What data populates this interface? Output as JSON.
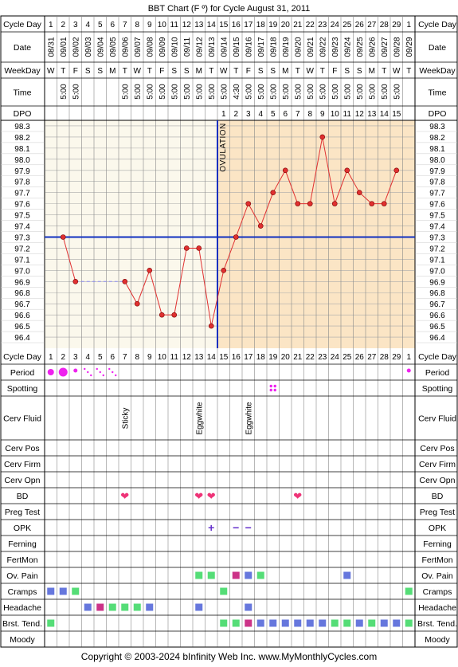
{
  "title": "BBT Chart (F º) for Cycle August 31, 2011",
  "row_labels": {
    "cycle_day": "Cycle Day",
    "date": "Date",
    "weekday": "WeekDay",
    "time": "Time",
    "dpo": "DPO",
    "period": "Period",
    "spotting": "Spotting",
    "cerv_fluid": "Cerv Fluid",
    "cerv_pos": "Cerv Pos",
    "cerv_firm": "Cerv Firm",
    "cerv_opn": "Cerv Opn",
    "bd": "BD",
    "preg_test": "Preg Test",
    "opk": "OPK",
    "ferning": "Ferning",
    "fertmon": "FertMon",
    "ov_pain": "Ov. Pain",
    "cramps": "Cramps",
    "headache": "Headache",
    "brst_tend": "Brst. Tend.",
    "moody": "Moody"
  },
  "ovulation_label": "OVULATION",
  "footer": "Copyright © 2003-2024 bInfinity Web Inc.     www.MyMonthlyCycles.com",
  "colors": {
    "line": "#e03030",
    "point": "#e03030",
    "coverline": "#1030c0",
    "ovulation_line": "#1030c0",
    "pre_bg": "#fbf8ec",
    "post_bg": "#fbe5c5",
    "period": "#ee22ee",
    "heart": "#ee3377",
    "green": "#55dd77",
    "blue": "#6677dd",
    "magenta": "#cc3388"
  },
  "chart_data": {
    "type": "line",
    "cycle_days": [
      "1",
      "2",
      "3",
      "4",
      "5",
      "6",
      "7",
      "8",
      "9",
      "10",
      "11",
      "12",
      "13",
      "14",
      "15",
      "16",
      "17",
      "18",
      "19",
      "20",
      "21",
      "22",
      "23",
      "24",
      "25",
      "26",
      "27",
      "28",
      "29",
      "1"
    ],
    "dates": [
      "08/31",
      "09/01",
      "09/02",
      "09/03",
      "09/04",
      "09/05",
      "09/06",
      "09/07",
      "09/08",
      "09/09",
      "09/10",
      "09/11",
      "09/12",
      "09/13",
      "09/14",
      "09/15",
      "09/16",
      "09/17",
      "09/18",
      "09/19",
      "09/20",
      "09/21",
      "09/22",
      "09/23",
      "09/24",
      "09/25",
      "09/26",
      "09/27",
      "09/28",
      "09/29"
    ],
    "weekdays": [
      "W",
      "T",
      "F",
      "S",
      "S",
      "M",
      "T",
      "W",
      "T",
      "F",
      "S",
      "S",
      "M",
      "T",
      "W",
      "T",
      "F",
      "S",
      "S",
      "M",
      "T",
      "W",
      "T",
      "F",
      "S",
      "S",
      "M",
      "T",
      "W",
      "T"
    ],
    "times": [
      "",
      "5:00",
      "5:00",
      "",
      "",
      "",
      "5:00",
      "5:00",
      "5:00",
      "5:00",
      "5:00",
      "5:00",
      "5:00",
      "5:00",
      "5:00",
      "4:30",
      "5:00",
      "5:00",
      "5:00",
      "5:00",
      "5:00",
      "5:00",
      "5:00",
      "5:00",
      "5:00",
      "5:00",
      "5:00",
      "5:00",
      "5:00",
      ""
    ],
    "dpo": [
      "",
      "",
      "",
      "",
      "",
      "",
      "",
      "",
      "",
      "",
      "",
      "",
      "",
      "",
      "1",
      "2",
      "3",
      "4",
      "5",
      "6",
      "7",
      "8",
      "9",
      "10",
      "11",
      "12",
      "13",
      "14",
      "15",
      ""
    ],
    "temperatures": [
      null,
      97.3,
      96.9,
      null,
      null,
      null,
      96.9,
      96.7,
      97.0,
      96.6,
      96.6,
      97.2,
      97.2,
      96.5,
      97.0,
      97.3,
      97.6,
      97.4,
      97.7,
      97.9,
      97.6,
      97.6,
      98.2,
      97.6,
      97.9,
      97.7,
      97.6,
      97.6,
      97.9,
      null
    ],
    "y_ticks": [
      "98.3",
      "98.2",
      "98.1",
      "98.0",
      "97.9",
      "97.8",
      "97.7",
      "97.6",
      "97.5",
      "97.4",
      "97.3",
      "97.2",
      "97.1",
      "97.0",
      "96.9",
      "96.8",
      "96.7",
      "96.6",
      "96.5",
      "96.4"
    ],
    "ylim": [
      96.4,
      98.3
    ],
    "coverline": 97.3,
    "ovulation_day_index": 13,
    "interpolated_segment": [
      2,
      6
    ],
    "period": [
      "big",
      "big",
      "small",
      "dots",
      "dots",
      "dots",
      "",
      "",
      "",
      "",
      "",
      "",
      "",
      "",
      "",
      "",
      "",
      "",
      "",
      "",
      "",
      "",
      "",
      "",
      "",
      "",
      "",
      "",
      "",
      "small"
    ],
    "spotting": [
      18
    ],
    "cerv_fluid": {
      "6": "Sticky",
      "12": "Eggwhite",
      "16": "Eggwhite"
    },
    "bd": [
      6,
      12,
      13,
      20
    ],
    "opk": {
      "13": "+",
      "15": "−",
      "16": "−"
    },
    "ov_pain": {
      "12": "green",
      "13": "green",
      "15": "magenta",
      "16": "blue",
      "17": "green",
      "24": "blue"
    },
    "cramps": {
      "0": "blue",
      "1": "blue",
      "2": "green",
      "14": "green",
      "29": "green"
    },
    "headache": {
      "3": "blue",
      "4": "magenta",
      "5": "green",
      "6": "green",
      "7": "green",
      "8": "blue",
      "12": "blue",
      "16": "blue"
    },
    "brst_tend": {
      "0": "green",
      "14": "green",
      "15": "green",
      "16": "magenta",
      "17": "blue",
      "18": "blue",
      "19": "blue",
      "20": "blue",
      "21": "blue",
      "22": "blue",
      "23": "green",
      "24": "green",
      "25": "blue",
      "26": "green",
      "27": "blue",
      "28": "blue",
      "29": "green"
    }
  }
}
